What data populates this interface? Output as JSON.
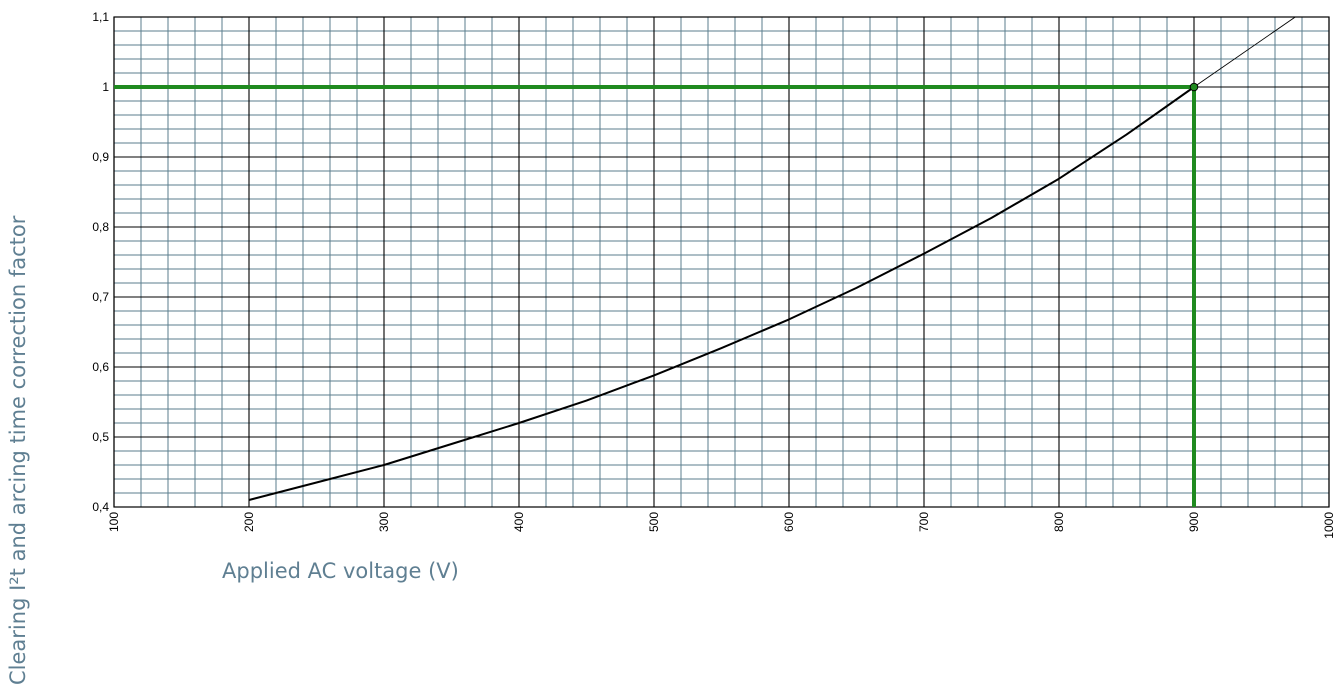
{
  "chart_data": {
    "type": "line",
    "title": "",
    "xlabel": "Applied AC voltage (V)",
    "ylabel": "Clearing I²t and arcing time correction factor",
    "xlim": [
      100,
      1000
    ],
    "ylim": [
      0.4,
      1.1
    ],
    "x_ticks": [
      100,
      200,
      300,
      400,
      500,
      600,
      700,
      800,
      900,
      1000
    ],
    "x_tick_labels": [
      "100",
      "200",
      "300",
      "400",
      "500",
      "600",
      "700",
      "800",
      "900",
      "1000"
    ],
    "y_ticks": [
      0.4,
      0.5,
      0.6,
      0.7,
      0.8,
      0.9,
      1.0,
      1.1
    ],
    "y_tick_labels": [
      "0,4",
      "0,5",
      "0,6",
      "0,7",
      "0,8",
      "0,9",
      "1",
      "1,1"
    ],
    "x_minor_step": 20,
    "y_minor_step": 0.02,
    "grid": true,
    "series": [
      {
        "x": [
          200,
          250,
          300,
          350,
          400,
          450,
          500,
          550,
          600,
          650,
          700,
          750,
          800,
          850,
          900
        ],
        "y": [
          0.41,
          0.435,
          0.46,
          0.49,
          0.52,
          0.552,
          0.588,
          0.627,
          0.668,
          0.713,
          0.762,
          0.813,
          0.869,
          0.932,
          1.0
        ]
      }
    ],
    "extrapolation": {
      "x": [
        900,
        975
      ],
      "y": [
        1.0,
        1.1
      ]
    },
    "reference": {
      "x": 900,
      "y": 1.0
    },
    "colors": {
      "major_grid": "#000000",
      "minor_grid": "#5b7d8e",
      "curve": "#000000",
      "reference": "#1f8a1f",
      "axis_title": "#5f7f92"
    }
  }
}
